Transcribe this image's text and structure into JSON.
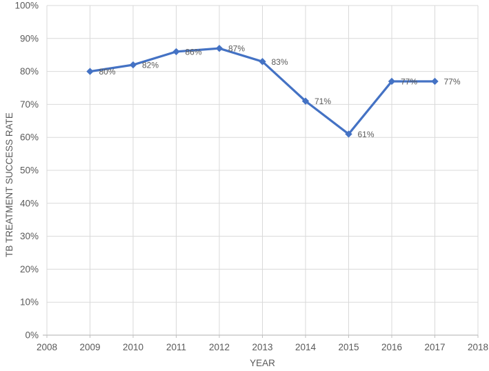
{
  "chart_data": {
    "type": "line",
    "xlabel": "YEAR",
    "ylabel": "TB TREATMENT SUCCESS RATE",
    "x": [
      2009,
      2010,
      2011,
      2012,
      2013,
      2014,
      2015,
      2016,
      2017
    ],
    "values": [
      80,
      82,
      86,
      87,
      83,
      71,
      61,
      77,
      77
    ],
    "data_labels": [
      "80%",
      "82%",
      "86%",
      "87%",
      "83%",
      "71%",
      "61%",
      "77%",
      "77%"
    ],
    "xlim": [
      2008,
      2018
    ],
    "ylim": [
      0,
      100
    ],
    "x_ticks": [
      "2008",
      "2009",
      "2010",
      "2011",
      "2012",
      "2013",
      "2014",
      "2015",
      "2016",
      "2017",
      "2018"
    ],
    "x_tick_values": [
      2008,
      2009,
      2010,
      2011,
      2012,
      2013,
      2014,
      2015,
      2016,
      2017,
      2018
    ],
    "y_ticks": [
      "0%",
      "10%",
      "20%",
      "30%",
      "40%",
      "50%",
      "60%",
      "70%",
      "80%",
      "90%",
      "100%"
    ],
    "y_tick_values": [
      0,
      10,
      20,
      30,
      40,
      50,
      60,
      70,
      80,
      90,
      100
    ],
    "grid": true,
    "legend": "none",
    "marker": "diamond",
    "colors": {
      "line": "#4472C4",
      "marker": "#4472C4",
      "text": "#595959",
      "gridline": "#D9D9D9",
      "axis": "#BFBFBF",
      "background": "#FFFFFF"
    }
  }
}
